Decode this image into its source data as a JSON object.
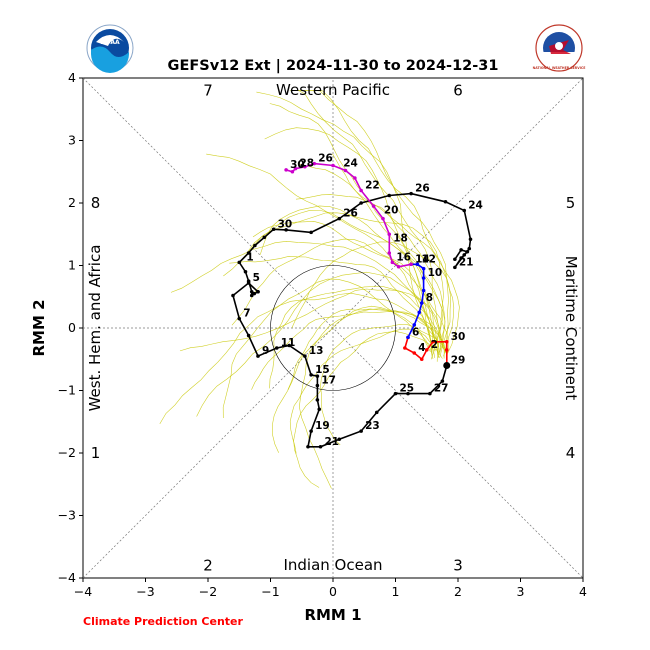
{
  "chart_data": {
    "type": "line",
    "title": "GEFSv12 Ext | 2024-11-30 to 2024-12-31",
    "xlabel": "RMM 1",
    "ylabel": "RMM 2",
    "xlim": [
      -4,
      4
    ],
    "ylim": [
      -4,
      4
    ],
    "xticks": [
      "−4",
      "−3",
      "−2",
      "−1",
      "0",
      "1",
      "2",
      "3",
      "4"
    ],
    "yticks": [
      "−4",
      "−3",
      "−2",
      "−1",
      "0",
      "1",
      "2",
      "3",
      "4"
    ],
    "phase_labels": [
      {
        "phase": "1",
        "x": -3.8,
        "y": -2.0
      },
      {
        "phase": "2",
        "x": -2.0,
        "y": -3.8
      },
      {
        "phase": "3",
        "x": 2.0,
        "y": -3.8
      },
      {
        "phase": "4",
        "x": 3.8,
        "y": -2.0
      },
      {
        "phase": "5",
        "x": 3.8,
        "y": 2.0
      },
      {
        "phase": "6",
        "x": 2.0,
        "y": 3.8
      },
      {
        "phase": "7",
        "x": -2.0,
        "y": 3.8
      },
      {
        "phase": "8",
        "x": -3.8,
        "y": 2.0
      }
    ],
    "region_labels": {
      "top": "Western Pacific",
      "bottom": "Indian Ocean",
      "left": "West. Hem. and Africa",
      "right": "Maritime Continent"
    },
    "unit_circle_radius": 1,
    "grid": "dotted diagonals and axes",
    "series": [
      {
        "color": "#000000",
        "points": [
          [
            -1.2,
            0.58
          ],
          [
            -1.26,
            0.55
          ],
          [
            -1.3,
            0.52
          ],
          [
            -1.3,
            0.58
          ],
          [
            -1.35,
            0.75
          ],
          [
            -1.4,
            0.9
          ],
          [
            -1.5,
            1.05
          ],
          [
            -1.35,
            1.2
          ],
          [
            -1.25,
            1.32
          ],
          [
            -1.1,
            1.45
          ],
          [
            -0.95,
            1.58
          ],
          [
            -0.75,
            1.57
          ],
          [
            -0.35,
            1.53
          ],
          [
            0.1,
            1.75
          ],
          [
            0.45,
            2.0
          ],
          [
            0.9,
            2.12
          ],
          [
            1.25,
            2.15
          ],
          [
            1.8,
            2.02
          ],
          [
            2.1,
            1.88
          ],
          [
            2.2,
            1.42
          ],
          [
            2.18,
            1.27
          ],
          [
            2.1,
            1.17
          ],
          [
            1.95,
            0.97
          ],
          [
            2.05,
            1.12
          ],
          [
            2.15,
            1.22
          ],
          [
            2.05,
            1.25
          ],
          [
            1.95,
            1.1
          ]
        ],
        "day_labels": [
          {
            "day": "30",
            "x": -0.95,
            "y": 1.58
          },
          {
            "day": "26",
            "x": 0.1,
            "y": 1.75
          },
          {
            "day": "26",
            "x": 1.25,
            "y": 2.15
          },
          {
            "day": "24",
            "x": 2.1,
            "y": 1.88
          },
          {
            "day": "21",
            "x": 1.95,
            "y": 0.97
          },
          {
            "day": "1",
            "x": -1.45,
            "y": 1.05
          }
        ]
      },
      {
        "color": "#000000",
        "points": [
          [
            -1.2,
            0.58
          ],
          [
            -1.35,
            0.72
          ],
          [
            -1.6,
            0.52
          ],
          [
            -1.5,
            0.15
          ],
          [
            -1.35,
            -0.12
          ],
          [
            -1.2,
            -0.45
          ],
          [
            -0.9,
            -0.32
          ],
          [
            -0.7,
            -0.28
          ],
          [
            -0.45,
            -0.45
          ],
          [
            -0.35,
            -0.75
          ],
          [
            -0.25,
            -0.77
          ],
          [
            -0.25,
            -0.92
          ],
          [
            -0.25,
            -1.15
          ],
          [
            -0.22,
            -1.3
          ],
          [
            -0.35,
            -1.65
          ],
          [
            -0.4,
            -1.9
          ],
          [
            -0.2,
            -1.9
          ],
          [
            0.1,
            -1.78
          ],
          [
            0.45,
            -1.65
          ],
          [
            0.7,
            -1.35
          ],
          [
            1.0,
            -1.05
          ],
          [
            1.2,
            -1.05
          ],
          [
            1.55,
            -1.05
          ],
          [
            1.75,
            -0.85
          ],
          [
            1.82,
            -0.6
          ]
        ],
        "day_labels": [
          {
            "day": "5",
            "x": -1.35,
            "y": 0.72
          },
          {
            "day": "7",
            "x": -1.5,
            "y": 0.15
          },
          {
            "day": "9",
            "x": -1.2,
            "y": -0.45
          },
          {
            "day": "11",
            "x": -0.9,
            "y": -0.32
          },
          {
            "day": "13",
            "x": -0.45,
            "y": -0.45
          },
          {
            "day": "15",
            "x": -0.35,
            "y": -0.75
          },
          {
            "day": "17",
            "x": -0.25,
            "y": -0.92
          },
          {
            "day": "19",
            "x": -0.35,
            "y": -1.65
          },
          {
            "day": "21",
            "x": -0.2,
            "y": -1.9
          },
          {
            "day": "23",
            "x": 0.45,
            "y": -1.65
          },
          {
            "day": "25",
            "x": 1.0,
            "y": -1.05
          },
          {
            "day": "27",
            "x": 1.55,
            "y": -1.05
          }
        ]
      },
      {
        "color": "#ff0000",
        "points": [
          [
            1.82,
            -0.6
          ],
          [
            1.82,
            -0.35
          ],
          [
            1.82,
            -0.22
          ],
          [
            1.6,
            -0.22
          ],
          [
            1.5,
            -0.35
          ],
          [
            1.42,
            -0.5
          ],
          [
            1.3,
            -0.4
          ],
          [
            1.15,
            -0.32
          ],
          [
            1.2,
            -0.15
          ]
        ],
        "day_labels": [
          {
            "day": "29",
            "x": 1.82,
            "y": -0.6
          },
          {
            "day": "30",
            "x": 1.82,
            "y": -0.22
          },
          {
            "day": "2",
            "x": 1.5,
            "y": -0.35
          },
          {
            "day": "4",
            "x": 1.3,
            "y": -0.4
          },
          {
            "day": "6",
            "x": 1.2,
            "y": -0.15
          }
        ]
      },
      {
        "color": "#0000ff",
        "points": [
          [
            1.2,
            -0.15
          ],
          [
            1.3,
            0.05
          ],
          [
            1.38,
            0.25
          ],
          [
            1.42,
            0.4
          ],
          [
            1.45,
            0.6
          ],
          [
            1.45,
            0.8
          ],
          [
            1.45,
            0.95
          ],
          [
            1.35,
            1.02
          ],
          [
            1.25,
            1.02
          ]
        ],
        "day_labels": [
          {
            "day": "8",
            "x": 1.42,
            "y": 0.4
          },
          {
            "day": "10",
            "x": 1.45,
            "y": 0.8
          },
          {
            "day": "12",
            "x": 1.35,
            "y": 1.02
          }
        ]
      },
      {
        "color": "#cc00cc",
        "points": [
          [
            1.25,
            1.02
          ],
          [
            1.05,
            0.98
          ],
          [
            0.95,
            1.05
          ],
          [
            0.9,
            1.2
          ],
          [
            0.9,
            1.5
          ],
          [
            0.8,
            1.75
          ],
          [
            0.65,
            1.95
          ],
          [
            0.45,
            2.2
          ],
          [
            0.35,
            2.4
          ],
          [
            0.2,
            2.52
          ],
          [
            0.0,
            2.6
          ],
          [
            -0.3,
            2.63
          ],
          [
            -0.45,
            2.58
          ],
          [
            -0.6,
            2.55
          ],
          [
            -0.65,
            2.5
          ],
          [
            -0.75,
            2.53
          ]
        ],
        "day_labels": [
          {
            "day": "14",
            "x": 1.25,
            "y": 1.02
          },
          {
            "day": "16",
            "x": 0.95,
            "y": 1.05
          },
          {
            "day": "18",
            "x": 0.9,
            "y": 1.35
          },
          {
            "day": "20",
            "x": 0.75,
            "y": 1.8
          },
          {
            "day": "22",
            "x": 0.45,
            "y": 2.2
          },
          {
            "day": "24",
            "x": 0.1,
            "y": 2.55
          },
          {
            "day": "26",
            "x": -0.3,
            "y": 2.63
          },
          {
            "day": "28",
            "x": -0.6,
            "y": 2.55
          },
          {
            "day": "30",
            "x": -0.75,
            "y": 2.53
          }
        ]
      }
    ],
    "ensemble_color": "#c8c800",
    "start_marker": [
      1.82,
      -0.6
    ]
  },
  "footer": {
    "credit": "Climate Prediction Center"
  },
  "logos": {
    "noaa_text": "NOAA",
    "nws_text": "NATIONAL WEATHER SERVICE"
  }
}
